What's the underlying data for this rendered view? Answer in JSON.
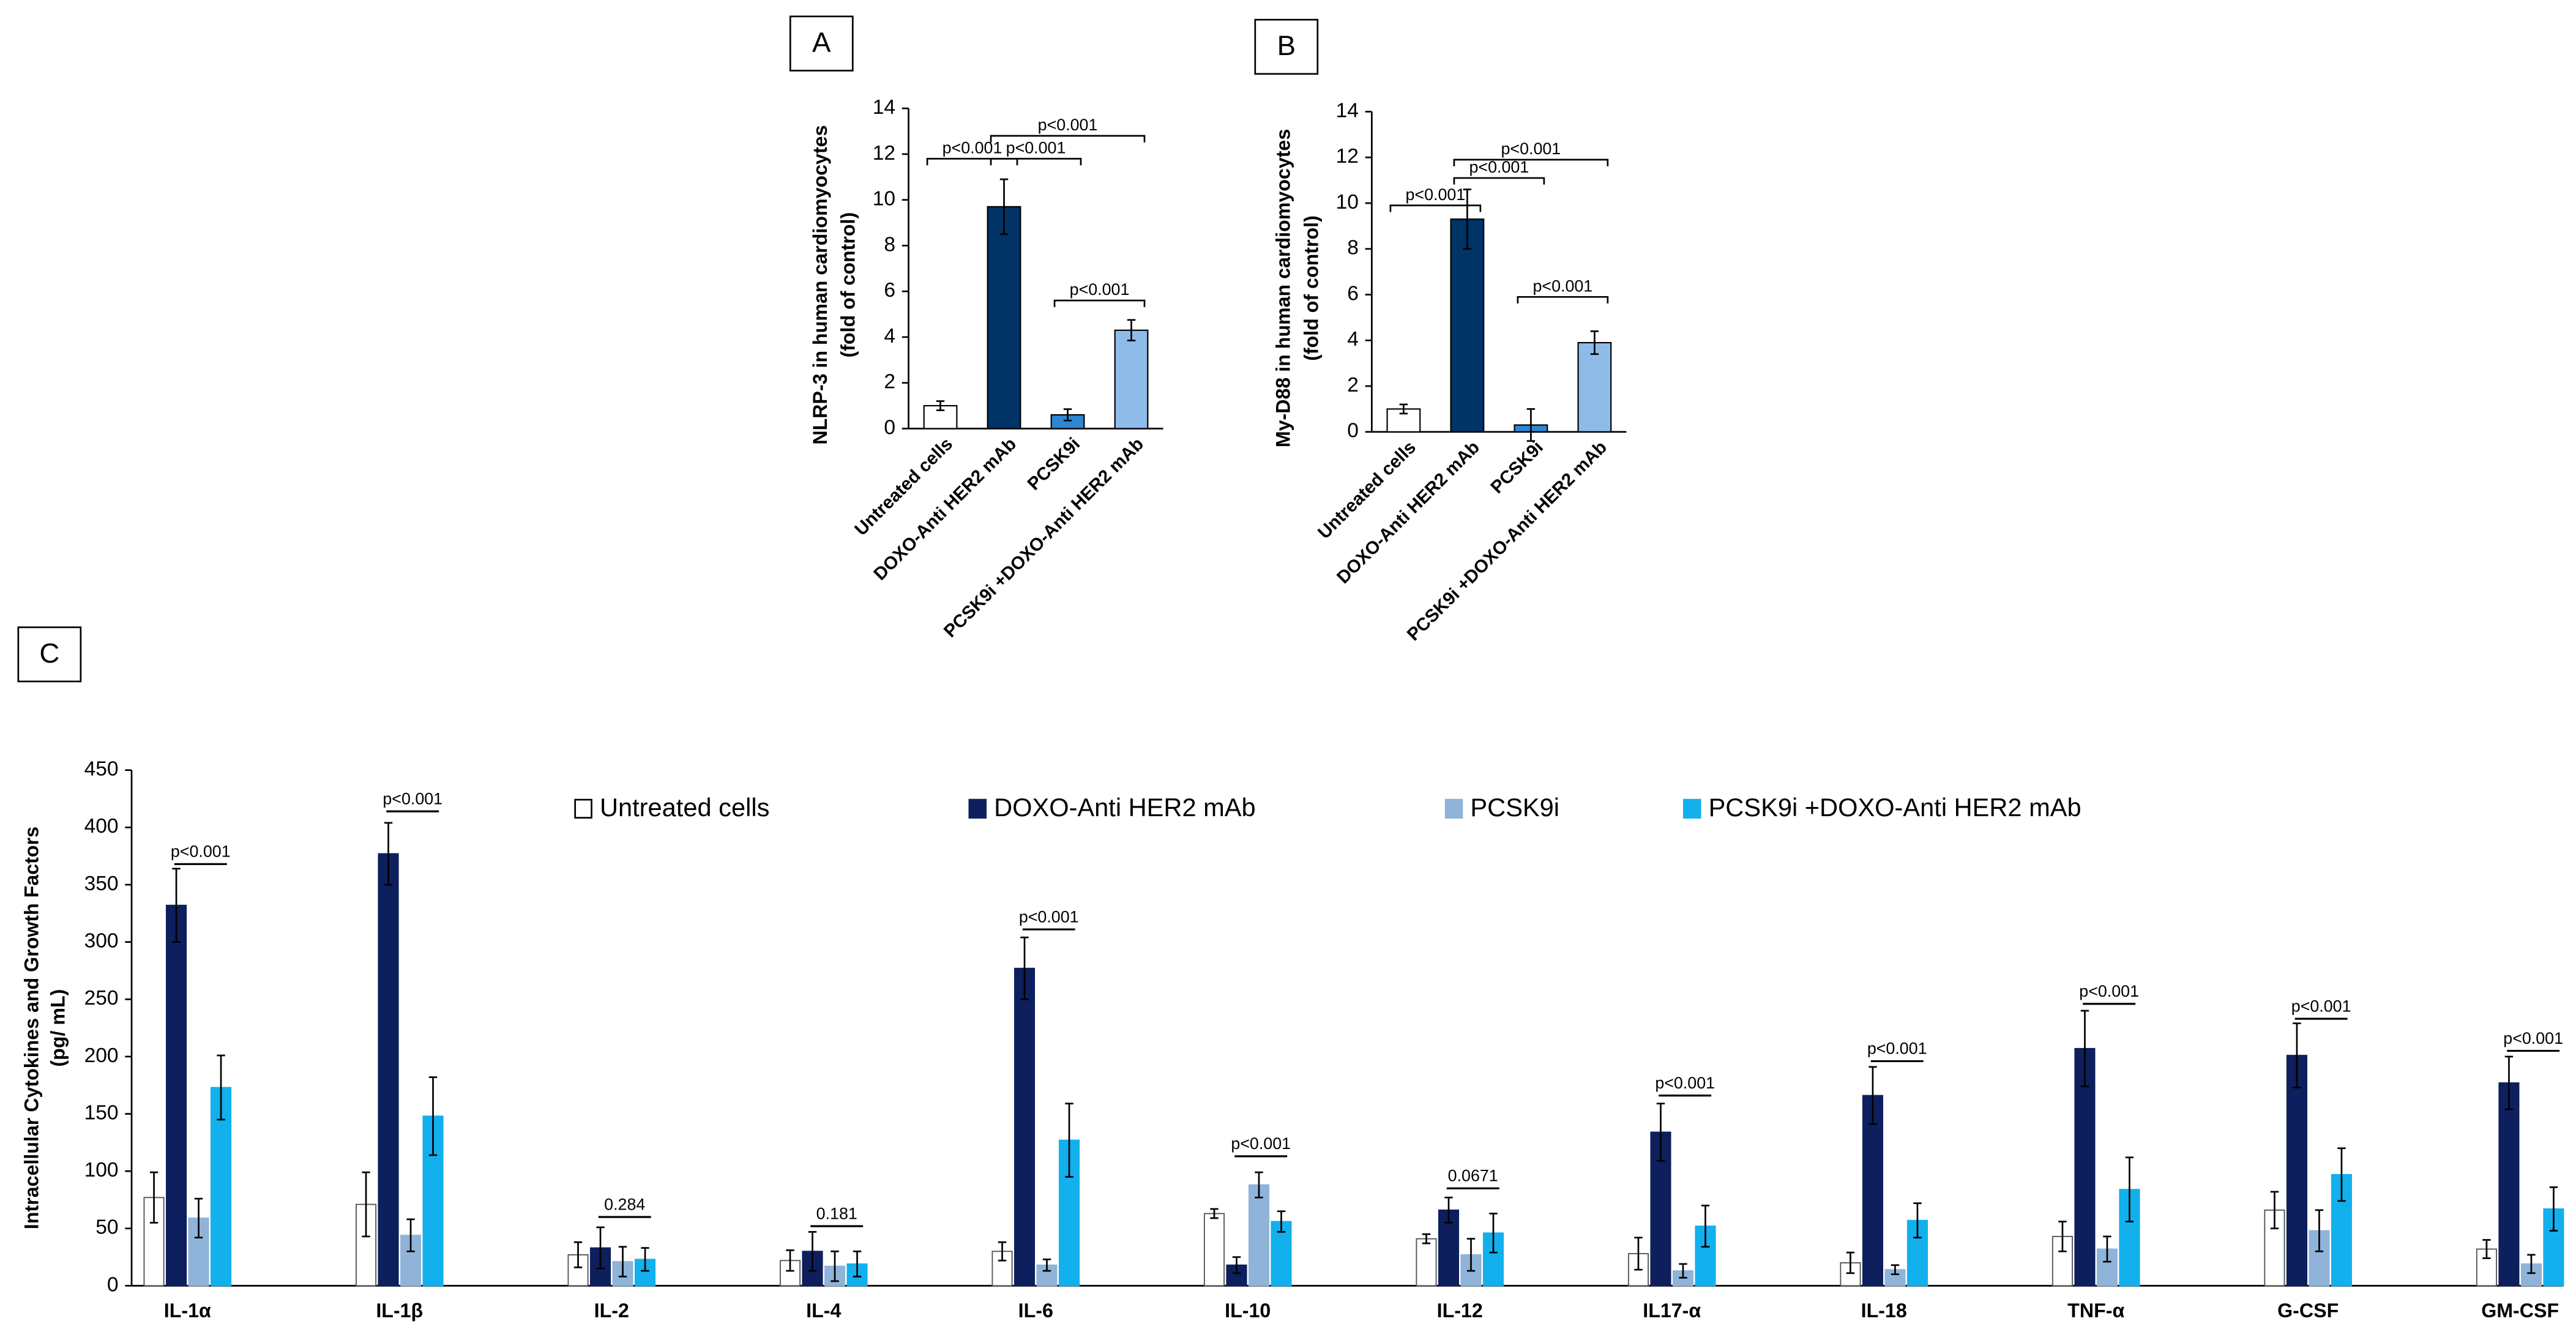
{
  "chart_data": [
    {
      "type": "bar",
      "panel": "A",
      "ylabel": [
        "NLRP-3 in human cardiomyocytes",
        "(fold of control)"
      ],
      "categories": [
        "Untreated cells",
        "DOXO-Anti HER2 mAb",
        "PCSK9i",
        "PCSK9i +DOXO-Anti HER2 mAb"
      ],
      "values": [
        1.0,
        9.7,
        0.6,
        4.3
      ],
      "errors": [
        0.2,
        1.2,
        0.25,
        0.45
      ],
      "colors": [
        "#ffffff",
        "#003366",
        "#2f86d1",
        "#8fbbe9"
      ],
      "ylim": [
        0,
        14
      ],
      "yticks": [
        0,
        2,
        4,
        6,
        8,
        10,
        12,
        14
      ],
      "annotations": [
        {
          "text": "p<0.001",
          "from": 0,
          "to": 1,
          "y": 11.8
        },
        {
          "text": "p<0.001",
          "from": 1,
          "to": 2,
          "y": 11.8
        },
        {
          "text": "p<0.001",
          "from": 1,
          "to": 3,
          "y": 12.8
        },
        {
          "text": "p<0.001",
          "from": 2,
          "to": 3,
          "y": 5.6
        }
      ]
    },
    {
      "type": "bar",
      "panel": "B",
      "ylabel": [
        "My-D88 in human cardiomyocytes",
        "(fold of control)"
      ],
      "categories": [
        "Untreated cells",
        "DOXO-Anti HER2 mAb",
        "PCSK9i",
        "PCSK9i +DOXO-Anti HER2 mAb"
      ],
      "values": [
        1.0,
        9.3,
        0.3,
        3.9
      ],
      "errors": [
        0.2,
        1.3,
        0.7,
        0.5
      ],
      "colors": [
        "#ffffff",
        "#003366",
        "#2f86d1",
        "#8fbbe9"
      ],
      "ylim": [
        0,
        14
      ],
      "yticks": [
        0,
        2,
        4,
        6,
        8,
        10,
        12,
        14
      ],
      "annotations": [
        {
          "text": "p<0.001",
          "from": 0,
          "to": 1,
          "y": 9.9
        },
        {
          "text": "p<0.001",
          "from": 1,
          "to": 2,
          "y": 11.1
        },
        {
          "text": "p<0.001",
          "from": 1,
          "to": 3,
          "y": 11.9
        },
        {
          "text": "p<0.001",
          "from": 2,
          "to": 3,
          "y": 5.9
        }
      ]
    },
    {
      "type": "grouped_bar",
      "panel": "C",
      "ylabel": [
        "Intracellular Cytokines and Growth Factors",
        "(pg/ mL)"
      ],
      "categories": [
        "IL-1α",
        "IL-1β",
        "IL-2",
        "IL-4",
        "IL-6",
        "IL-10",
        "IL-12",
        "IL17-α",
        "IL-18",
        "TNF-α",
        "G-CSF",
        "GM-CSF"
      ],
      "series": [
        {
          "name": "Untreated cells",
          "color": "#ffffff",
          "values": [
            77,
            71,
            27,
            22,
            30,
            63,
            41,
            28,
            20,
            43,
            66,
            32
          ],
          "errors": [
            22,
            28,
            11,
            9,
            8,
            4,
            4,
            14,
            9,
            13,
            16,
            8
          ]
        },
        {
          "name": "DOXO-Anti HER2 mAb",
          "color": "#0d1f5c",
          "values": [
            332,
            377,
            33,
            30,
            277,
            18,
            66,
            134,
            166,
            207,
            201,
            177
          ],
          "errors": [
            32,
            27,
            18,
            17,
            27,
            7,
            11,
            25,
            25,
            33,
            28,
            23
          ]
        },
        {
          "name": "PCSK9i",
          "color": "#8fb3d9",
          "values": [
            59,
            44,
            21,
            17,
            18,
            88,
            27,
            13,
            14,
            32,
            48,
            19
          ],
          "errors": [
            17,
            14,
            13,
            13,
            5,
            11,
            14,
            6,
            4,
            11,
            18,
            8
          ]
        },
        {
          "name": "PCSK9i +DOXO-Anti HER2 mAb",
          "color": "#12b0ec",
          "values": [
            173,
            148,
            23,
            19,
            127,
            56,
            46,
            52,
            57,
            84,
            97,
            67
          ],
          "errors": [
            28,
            34,
            10,
            11,
            32,
            9,
            17,
            18,
            15,
            28,
            23,
            19
          ]
        }
      ],
      "ylim": [
        0,
        450
      ],
      "yticks": [
        0,
        50,
        100,
        150,
        200,
        250,
        300,
        350,
        400,
        450
      ],
      "legend": "top",
      "annotations": [
        {
          "text": "p<0.001",
          "y": 368
        },
        {
          "text": "p<0.001",
          "y": 414
        },
        {
          "text": "0.284",
          "y": 60
        },
        {
          "text": "0.181",
          "y": 52
        },
        {
          "text": "p<0.001",
          "y": 311
        },
        {
          "text": "p<0.001",
          "y": 113
        },
        {
          "text": "0.0671",
          "y": 85
        },
        {
          "text": "p<0.001",
          "y": 166
        },
        {
          "text": "p<0.001",
          "y": 196
        },
        {
          "text": "p<0.001",
          "y": 246
        },
        {
          "text": "p<0.001",
          "y": 233
        },
        {
          "text": "p<0.001",
          "y": 205
        }
      ]
    }
  ]
}
